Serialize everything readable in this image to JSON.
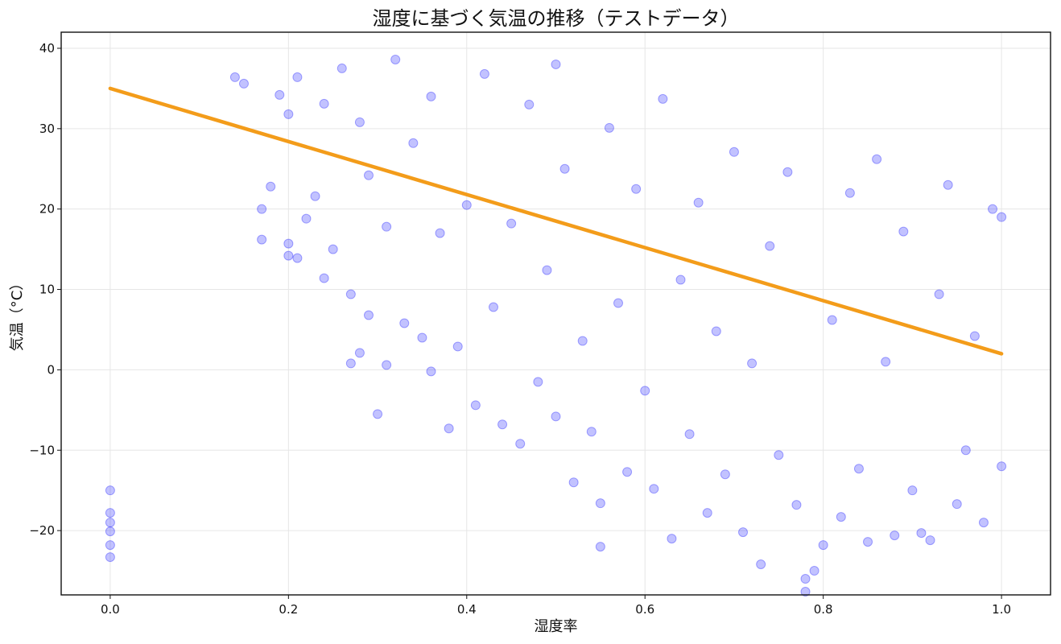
{
  "chart_data": {
    "type": "scatter",
    "title": "湿度に基づく気温の推移（テストデータ）",
    "xlabel": "湿度率",
    "ylabel": "気温（°C）",
    "xlim": [
      -0.055,
      1.055
    ],
    "ylim": [
      -28,
      42
    ],
    "xticks": [
      0.0,
      0.2,
      0.4,
      0.6,
      0.8,
      1.0
    ],
    "xtick_labels": [
      "0.0",
      "0.2",
      "0.4",
      "0.6",
      "0.8",
      "1.0"
    ],
    "yticks": [
      -20,
      -10,
      0,
      10,
      20,
      30,
      40
    ],
    "ytick_labels": [
      "−20",
      "−10",
      "0",
      "10",
      "20",
      "30",
      "40"
    ],
    "grid": true,
    "colors": {
      "points": "#0000ff",
      "trend": "#f39c1a",
      "grid": "#e6e6e6",
      "frame": "#111111"
    },
    "series": [
      {
        "type": "scatter",
        "points": [
          [
            0.0,
            -15.0
          ],
          [
            0.0,
            -17.8
          ],
          [
            0.0,
            -19.0
          ],
          [
            0.0,
            -20.1
          ],
          [
            0.0,
            -21.8
          ],
          [
            0.0,
            -23.3
          ],
          [
            0.14,
            36.4
          ],
          [
            0.15,
            35.6
          ],
          [
            0.17,
            20.0
          ],
          [
            0.17,
            16.2
          ],
          [
            0.18,
            22.8
          ],
          [
            0.19,
            34.2
          ],
          [
            0.2,
            14.2
          ],
          [
            0.2,
            15.7
          ],
          [
            0.2,
            31.8
          ],
          [
            0.21,
            13.9
          ],
          [
            0.21,
            36.4
          ],
          [
            0.22,
            18.8
          ],
          [
            0.23,
            21.6
          ],
          [
            0.24,
            11.4
          ],
          [
            0.24,
            33.1
          ],
          [
            0.25,
            15.0
          ],
          [
            0.26,
            37.5
          ],
          [
            0.27,
            0.8
          ],
          [
            0.27,
            9.4
          ],
          [
            0.28,
            2.1
          ],
          [
            0.28,
            30.8
          ],
          [
            0.29,
            6.8
          ],
          [
            0.29,
            24.2
          ],
          [
            0.3,
            -5.5
          ],
          [
            0.31,
            0.6
          ],
          [
            0.31,
            17.8
          ],
          [
            0.32,
            38.6
          ],
          [
            0.33,
            5.8
          ],
          [
            0.34,
            28.2
          ],
          [
            0.35,
            4.0
          ],
          [
            0.36,
            -0.2
          ],
          [
            0.36,
            34.0
          ],
          [
            0.37,
            17.0
          ],
          [
            0.38,
            -7.3
          ],
          [
            0.39,
            2.9
          ],
          [
            0.4,
            20.5
          ],
          [
            0.41,
            -4.4
          ],
          [
            0.42,
            36.8
          ],
          [
            0.43,
            7.8
          ],
          [
            0.44,
            -6.8
          ],
          [
            0.45,
            18.2
          ],
          [
            0.46,
            -9.2
          ],
          [
            0.47,
            33.0
          ],
          [
            0.48,
            -1.5
          ],
          [
            0.49,
            12.4
          ],
          [
            0.5,
            38.0
          ],
          [
            0.5,
            -5.8
          ],
          [
            0.51,
            25.0
          ],
          [
            0.52,
            -14.0
          ],
          [
            0.53,
            3.6
          ],
          [
            0.54,
            -7.7
          ],
          [
            0.55,
            -16.6
          ],
          [
            0.55,
            -22.0
          ],
          [
            0.56,
            30.1
          ],
          [
            0.57,
            8.3
          ],
          [
            0.58,
            -12.7
          ],
          [
            0.59,
            22.5
          ],
          [
            0.6,
            -2.6
          ],
          [
            0.61,
            -14.8
          ],
          [
            0.62,
            33.7
          ],
          [
            0.63,
            -21.0
          ],
          [
            0.64,
            11.2
          ],
          [
            0.65,
            -8.0
          ],
          [
            0.66,
            20.8
          ],
          [
            0.67,
            -17.8
          ],
          [
            0.68,
            4.8
          ],
          [
            0.69,
            -13.0
          ],
          [
            0.7,
            27.1
          ],
          [
            0.71,
            -20.2
          ],
          [
            0.72,
            0.8
          ],
          [
            0.73,
            -24.2
          ],
          [
            0.74,
            15.4
          ],
          [
            0.75,
            -10.6
          ],
          [
            0.76,
            24.6
          ],
          [
            0.77,
            -16.8
          ],
          [
            0.78,
            -26.0
          ],
          [
            0.78,
            -27.6
          ],
          [
            0.79,
            -25.0
          ],
          [
            0.8,
            -21.8
          ],
          [
            0.81,
            6.2
          ],
          [
            0.82,
            -18.3
          ],
          [
            0.83,
            22.0
          ],
          [
            0.84,
            -12.3
          ],
          [
            0.85,
            -21.4
          ],
          [
            0.86,
            26.2
          ],
          [
            0.87,
            1.0
          ],
          [
            0.88,
            -20.6
          ],
          [
            0.89,
            17.2
          ],
          [
            0.9,
            -15.0
          ],
          [
            0.91,
            -20.3
          ],
          [
            0.92,
            -21.2
          ],
          [
            0.93,
            9.4
          ],
          [
            0.94,
            23.0
          ],
          [
            0.95,
            -16.7
          ],
          [
            0.96,
            -10.0
          ],
          [
            0.97,
            4.2
          ],
          [
            0.98,
            -19.0
          ],
          [
            0.99,
            20.0
          ],
          [
            1.0,
            19.0
          ],
          [
            1.0,
            -12.0
          ]
        ]
      },
      {
        "type": "line",
        "points": [
          [
            0.0,
            35.0
          ],
          [
            1.0,
            2.0
          ]
        ]
      }
    ]
  }
}
